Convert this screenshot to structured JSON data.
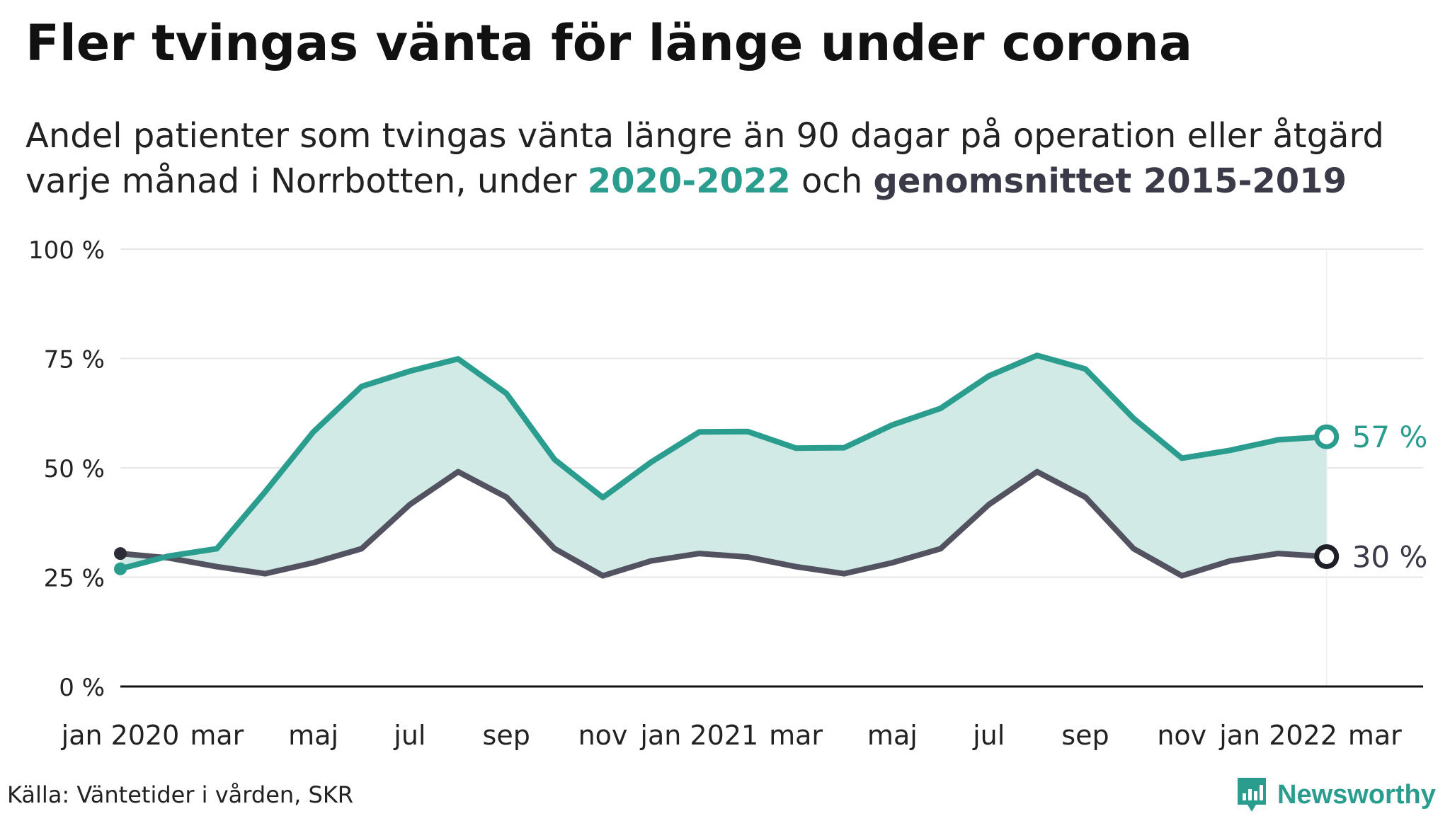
{
  "title": "Fler tvingas vänta för länge under corona",
  "subtitle": {
    "line1": "Andel patienter som tvingas vänta längre än 90 dagar på operation eller åtgärd",
    "line2_prefix": "varje månad i Norrbotten, under ",
    "series1_label": "2020-2022",
    "line2_middle": " och ",
    "series2_label": "genomsnittet 2015-2019"
  },
  "source": "Källa: Väntetider i vården, SKR",
  "brand": "Newsworthy",
  "colors": {
    "series_current": "#2a9d8f",
    "series_average": "#525260",
    "fill": "#d1eae6",
    "grid": "#e6e6e6",
    "axis": "#111111"
  },
  "chart_data": {
    "type": "line",
    "title": "Fler tvingas vänta för länge under corona",
    "x": [
      "2020-01",
      "2020-02",
      "2020-03",
      "2020-04",
      "2020-05",
      "2020-06",
      "2020-07",
      "2020-08",
      "2020-09",
      "2020-10",
      "2020-11",
      "2020-12",
      "2021-01",
      "2021-02",
      "2021-03",
      "2021-04",
      "2021-05",
      "2021-06",
      "2021-07",
      "2021-08",
      "2021-09",
      "2021-10",
      "2021-11",
      "2021-12",
      "2022-01",
      "2022-02"
    ],
    "x_tick_labels": [
      {
        "x": "2020-01",
        "label": "jan 2020"
      },
      {
        "x": "2020-03",
        "label": "mar"
      },
      {
        "x": "2020-05",
        "label": "maj"
      },
      {
        "x": "2020-07",
        "label": "jul"
      },
      {
        "x": "2020-09",
        "label": "sep"
      },
      {
        "x": "2020-11",
        "label": "nov"
      },
      {
        "x": "2021-01",
        "label": "jan 2021"
      },
      {
        "x": "2021-03",
        "label": "mar"
      },
      {
        "x": "2021-05",
        "label": "maj"
      },
      {
        "x": "2021-07",
        "label": "jul"
      },
      {
        "x": "2021-09",
        "label": "sep"
      },
      {
        "x": "2021-11",
        "label": "nov"
      },
      {
        "x": "2022-01",
        "label": "jan 2022"
      },
      {
        "x": "2022-03",
        "label": "mar"
      }
    ],
    "x_range": [
      "2020-01",
      "2022-04"
    ],
    "ylim": [
      0,
      100
    ],
    "y_ticks": [
      0,
      25,
      50,
      75,
      100
    ],
    "y_tick_labels": [
      "0 %",
      "25 %",
      "50 %",
      "75 %",
      "100 %"
    ],
    "grid": true,
    "fill_between_series": true,
    "series": [
      {
        "name": "2020-2022",
        "values": [
          26.9,
          29.8,
          31.5,
          44.5,
          58.2,
          68.6,
          72.1,
          74.9,
          67.0,
          51.9,
          43.2,
          51.3,
          58.2,
          58.3,
          54.5,
          54.6,
          59.8,
          63.6,
          71.0,
          75.7,
          72.6,
          61.3,
          52.2,
          54.0,
          56.4,
          57.1
        ],
        "end_label": "57 %"
      },
      {
        "name": "genomsnittet 2015-2019",
        "values": [
          30.4,
          29.4,
          27.4,
          25.8,
          28.3,
          31.5,
          41.6,
          49.1,
          43.3,
          31.5,
          25.3,
          28.7,
          30.4,
          29.6,
          27.4,
          25.8,
          28.3,
          31.5,
          41.6,
          49.1,
          43.3,
          31.5,
          25.3,
          28.7,
          30.4,
          29.7
        ],
        "end_label": "30 %"
      }
    ]
  }
}
